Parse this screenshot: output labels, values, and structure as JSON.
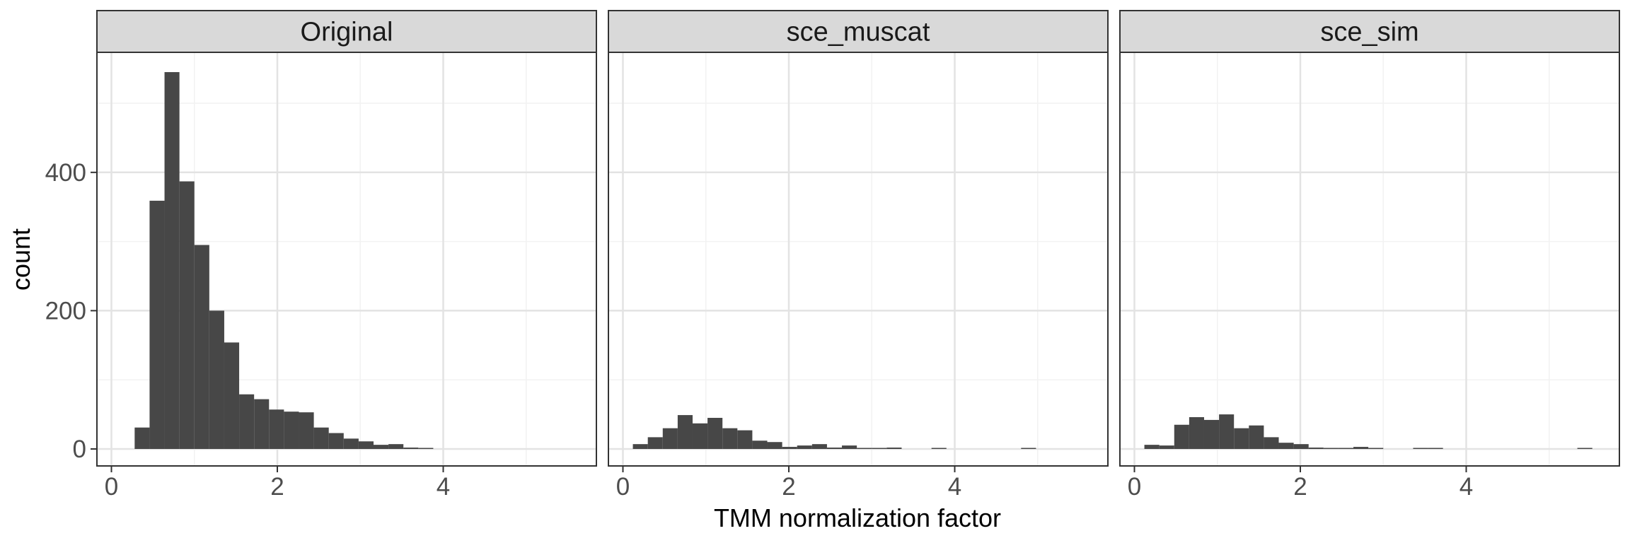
{
  "chart_data": {
    "type": "bar",
    "subtype": "histogram-faceted",
    "xlabel": "TMM normalization factor",
    "ylabel": "count",
    "xlim": [
      -0.2,
      5.8
    ],
    "ylim": [
      -25,
      572
    ],
    "x_ticks": [
      0,
      2,
      4
    ],
    "y_ticks": [
      0,
      200,
      400
    ],
    "x_minor": [
      1,
      3,
      5
    ],
    "y_minor": [
      100,
      300,
      500
    ],
    "grid": true,
    "colors": {
      "bar": "#474747",
      "strip": "#d9d9d9",
      "grid_major": "#e3e3e3",
      "grid_minor": "#f2f2f2",
      "frame": "#333333"
    },
    "bin_width": 0.18,
    "facets": [
      {
        "name": "Original",
        "bins": [
          {
            "x0": 0.28,
            "x1": 0.46,
            "count": 31
          },
          {
            "x0": 0.46,
            "x1": 0.64,
            "count": 359
          },
          {
            "x0": 0.64,
            "x1": 0.82,
            "count": 545
          },
          {
            "x0": 0.82,
            "x1": 1.0,
            "count": 387
          },
          {
            "x0": 1.0,
            "x1": 1.18,
            "count": 295
          },
          {
            "x0": 1.18,
            "x1": 1.36,
            "count": 200
          },
          {
            "x0": 1.36,
            "x1": 1.54,
            "count": 154
          },
          {
            "x0": 1.54,
            "x1": 1.72,
            "count": 79
          },
          {
            "x0": 1.72,
            "x1": 1.9,
            "count": 72
          },
          {
            "x0": 1.9,
            "x1": 2.08,
            "count": 57
          },
          {
            "x0": 2.08,
            "x1": 2.26,
            "count": 54
          },
          {
            "x0": 2.26,
            "x1": 2.44,
            "count": 53
          },
          {
            "x0": 2.44,
            "x1": 2.62,
            "count": 31
          },
          {
            "x0": 2.62,
            "x1": 2.8,
            "count": 23
          },
          {
            "x0": 2.8,
            "x1": 2.98,
            "count": 15
          },
          {
            "x0": 2.98,
            "x1": 3.16,
            "count": 11
          },
          {
            "x0": 3.16,
            "x1": 3.34,
            "count": 6
          },
          {
            "x0": 3.34,
            "x1": 3.52,
            "count": 7
          },
          {
            "x0": 3.52,
            "x1": 3.7,
            "count": 2
          },
          {
            "x0": 3.7,
            "x1": 3.88,
            "count": 1
          }
        ]
      },
      {
        "name": "sce_muscat",
        "bins": [
          {
            "x0": 0.12,
            "x1": 0.3,
            "count": 7
          },
          {
            "x0": 0.3,
            "x1": 0.48,
            "count": 17
          },
          {
            "x0": 0.48,
            "x1": 0.66,
            "count": 30
          },
          {
            "x0": 0.66,
            "x1": 0.84,
            "count": 49
          },
          {
            "x0": 0.84,
            "x1": 1.02,
            "count": 37
          },
          {
            "x0": 1.02,
            "x1": 1.2,
            "count": 45
          },
          {
            "x0": 1.2,
            "x1": 1.38,
            "count": 30
          },
          {
            "x0": 1.38,
            "x1": 1.56,
            "count": 27
          },
          {
            "x0": 1.56,
            "x1": 1.74,
            "count": 12
          },
          {
            "x0": 1.74,
            "x1": 1.92,
            "count": 10
          },
          {
            "x0": 1.92,
            "x1": 2.1,
            "count": 3
          },
          {
            "x0": 2.1,
            "x1": 2.28,
            "count": 5
          },
          {
            "x0": 2.28,
            "x1": 2.46,
            "count": 7
          },
          {
            "x0": 2.46,
            "x1": 2.64,
            "count": 2
          },
          {
            "x0": 2.64,
            "x1": 2.82,
            "count": 5
          },
          {
            "x0": 2.82,
            "x1": 3.0,
            "count": 1
          },
          {
            "x0": 3.0,
            "x1": 3.18,
            "count": 1
          },
          {
            "x0": 3.18,
            "x1": 3.36,
            "count": 2
          },
          {
            "x0": 3.72,
            "x1": 3.9,
            "count": 1
          },
          {
            "x0": 4.8,
            "x1": 4.98,
            "count": 1
          }
        ]
      },
      {
        "name": "sce_sim",
        "bins": [
          {
            "x0": 0.12,
            "x1": 0.3,
            "count": 6
          },
          {
            "x0": 0.3,
            "x1": 0.48,
            "count": 5
          },
          {
            "x0": 0.48,
            "x1": 0.66,
            "count": 35
          },
          {
            "x0": 0.66,
            "x1": 0.84,
            "count": 46
          },
          {
            "x0": 0.84,
            "x1": 1.02,
            "count": 42
          },
          {
            "x0": 1.02,
            "x1": 1.2,
            "count": 50
          },
          {
            "x0": 1.2,
            "x1": 1.38,
            "count": 30
          },
          {
            "x0": 1.38,
            "x1": 1.56,
            "count": 34
          },
          {
            "x0": 1.56,
            "x1": 1.74,
            "count": 17
          },
          {
            "x0": 1.74,
            "x1": 1.92,
            "count": 9
          },
          {
            "x0": 1.92,
            "x1": 2.1,
            "count": 7
          },
          {
            "x0": 2.1,
            "x1": 2.28,
            "count": 2
          },
          {
            "x0": 2.28,
            "x1": 2.46,
            "count": 1
          },
          {
            "x0": 2.46,
            "x1": 2.64,
            "count": 1
          },
          {
            "x0": 2.64,
            "x1": 2.82,
            "count": 3
          },
          {
            "x0": 2.82,
            "x1": 3.0,
            "count": 1
          },
          {
            "x0": 3.36,
            "x1": 3.54,
            "count": 1
          },
          {
            "x0": 3.54,
            "x1": 3.72,
            "count": 1
          },
          {
            "x0": 5.34,
            "x1": 5.52,
            "count": 1
          }
        ]
      }
    ]
  }
}
